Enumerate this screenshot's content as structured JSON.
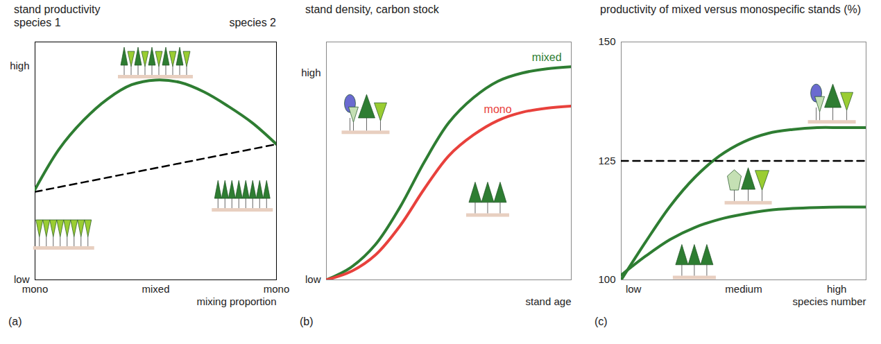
{
  "chart_data": [
    {
      "type": "line",
      "panel_label": "(a)",
      "title": "stand productivity",
      "x_end_labels": [
        "species 1",
        "species 2"
      ],
      "x_label": "mixing proportion",
      "x": [
        0,
        0.1,
        0.2,
        0.3,
        0.4,
        0.5,
        0.6,
        0.7,
        0.8,
        0.9,
        1
      ],
      "xlim": [
        0,
        1
      ],
      "xticks": [
        {
          "value": 0,
          "label": "mono"
        },
        {
          "value": 0.5,
          "label": "mixed"
        },
        {
          "value": 1,
          "label": "mono"
        }
      ],
      "ylim": [
        0,
        1
      ],
      "yticks": [
        {
          "value": 0,
          "label": "low"
        },
        {
          "value": 0.9,
          "label": "high"
        }
      ],
      "series": [
        {
          "color": "#2e7d32",
          "values": [
            0.38,
            0.55,
            0.67,
            0.76,
            0.82,
            0.84,
            0.83,
            0.79,
            0.73,
            0.66,
            0.57
          ]
        },
        {
          "color": "#000000",
          "line_style": "dashed",
          "values": [
            0.37,
            0.39,
            0.41,
            0.43,
            0.45,
            0.47,
            0.49,
            0.51,
            0.53,
            0.55,
            0.57
          ]
        }
      ]
    },
    {
      "type": "line",
      "panel_label": "(b)",
      "title": "stand density, carbon stock",
      "x_label": "stand age",
      "tick_labels": "y",
      "x": [
        0,
        1,
        2,
        3,
        4,
        5,
        6,
        7,
        8,
        9,
        10
      ],
      "xlim": [
        0,
        10
      ],
      "ylim": [
        0,
        1.15
      ],
      "yticks": [
        {
          "value": 0,
          "label": "low"
        },
        {
          "value": 1,
          "label": "high"
        }
      ],
      "series": [
        {
          "name": "mixed",
          "color": "#2e7d32",
          "values": [
            0,
            0.06,
            0.17,
            0.35,
            0.57,
            0.76,
            0.88,
            0.96,
            1.0,
            1.02,
            1.03
          ]
        },
        {
          "name": "mono",
          "color": "#e8413c",
          "values": [
            0,
            0.04,
            0.12,
            0.26,
            0.44,
            0.6,
            0.7,
            0.77,
            0.81,
            0.83,
            0.84
          ]
        }
      ]
    },
    {
      "type": "line",
      "panel_label": "(c)",
      "title": "productivity of mixed versus monospecific stands (%)",
      "x_label": "species number",
      "x": [
        0,
        1,
        2,
        3,
        4,
        5,
        6,
        7,
        8,
        9,
        10
      ],
      "xlim": [
        0,
        10
      ],
      "xticks": [
        {
          "value": 0.5,
          "label": "low"
        },
        {
          "value": 5,
          "label": "medium"
        },
        {
          "value": 8.8,
          "label": "high"
        }
      ],
      "ylim": [
        100,
        150
      ],
      "yticks": [
        100,
        125,
        150
      ],
      "series": [
        {
          "color": "#2e7d32",
          "values": [
            100,
            108,
            115.5,
            121.5,
            126,
            129,
            130.8,
            131.6,
            132,
            132,
            132
          ]
        },
        {
          "color": "#2e7d32",
          "values": [
            101,
            105,
            108.5,
            111,
            112.7,
            113.8,
            114.6,
            115,
            115.2,
            115.3,
            115.3
          ]
        },
        {
          "color": "#000000",
          "line_style": "dashed",
          "values": [
            125,
            125,
            125,
            125,
            125,
            125,
            125,
            125,
            125,
            125,
            125
          ]
        }
      ]
    }
  ]
}
